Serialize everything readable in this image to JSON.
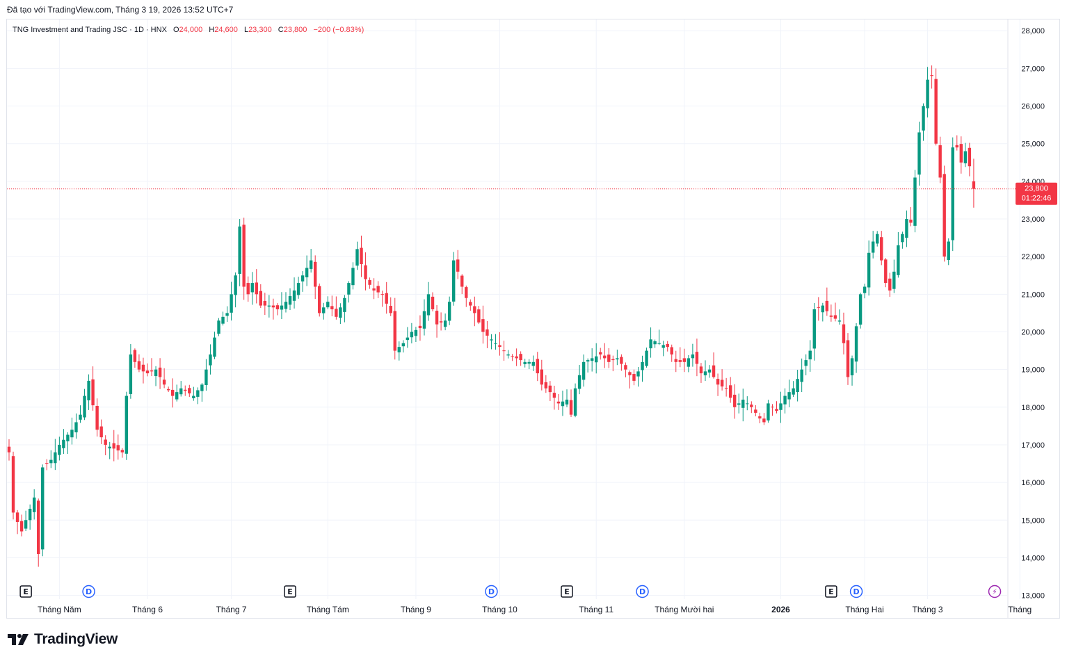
{
  "header": {
    "created_text": "Đã tạo với TradingView.com, Tháng 3 19, 2026 13:52 UTC+7"
  },
  "legend": {
    "symbol": "TNG Investment and Trading JSC · 1D · HNX",
    "o_label": "O",
    "o_value": "24,000",
    "h_label": "H",
    "h_value": "24,600",
    "l_label": "L",
    "l_value": "23,300",
    "c_label": "C",
    "c_value": "23,800",
    "change": "−200 (−0.83%)"
  },
  "price_tag": {
    "price": "23,800",
    "countdown": "01:22:46"
  },
  "brand": {
    "name": "TradingView"
  },
  "colors": {
    "up": "#089981",
    "down": "#f23645",
    "grid": "#f0f3fa",
    "axis_text": "#131722",
    "dividend": "#2962ff",
    "earnings": "#131722",
    "split": "#9c27b0"
  },
  "chart_data": {
    "type": "candlestick",
    "y_range": [
      12900,
      28300
    ],
    "y_ticks": [
      {
        "value": 28000,
        "label": "28,000"
      },
      {
        "value": 27000,
        "label": "27,000"
      },
      {
        "value": 26000,
        "label": "26,000"
      },
      {
        "value": 25000,
        "label": "25,000"
      },
      {
        "value": 24000,
        "label": "24,000"
      },
      {
        "value": 23000,
        "label": "23,000"
      },
      {
        "value": 22000,
        "label": "22,000"
      },
      {
        "value": 21000,
        "label": "21,000"
      },
      {
        "value": 20000,
        "label": "20,000"
      },
      {
        "value": 19000,
        "label": "19,000"
      },
      {
        "value": 18000,
        "label": "18,000"
      },
      {
        "value": 17000,
        "label": "17,000"
      },
      {
        "value": 16000,
        "label": "16,000"
      },
      {
        "value": 15000,
        "label": "15,000"
      },
      {
        "value": 14000,
        "label": "14,000"
      },
      {
        "value": 13000,
        "label": "13,000"
      }
    ],
    "x_ticks": [
      {
        "index": 12,
        "label": "Tháng Năm",
        "bold": false
      },
      {
        "index": 33,
        "label": "Tháng 6",
        "bold": false
      },
      {
        "index": 53,
        "label": "Tháng 7",
        "bold": false
      },
      {
        "index": 76,
        "label": "Tháng Tám",
        "bold": false
      },
      {
        "index": 97,
        "label": "Tháng 9",
        "bold": false
      },
      {
        "index": 117,
        "label": "Tháng 10",
        "bold": false
      },
      {
        "index": 140,
        "label": "Tháng 11",
        "bold": false
      },
      {
        "index": 161,
        "label": "Tháng Mười hai",
        "bold": false
      },
      {
        "index": 184,
        "label": "2026",
        "bold": true
      },
      {
        "index": 204,
        "label": "Tháng Hai",
        "bold": false
      },
      {
        "index": 219,
        "label": "Tháng 3",
        "bold": false
      },
      {
        "index": 241,
        "label": "Tháng",
        "bold": false
      }
    ],
    "markers": [
      {
        "index": 4,
        "type": "E"
      },
      {
        "index": 19,
        "type": "D"
      },
      {
        "index": 67,
        "type": "E"
      },
      {
        "index": 115,
        "type": "D"
      },
      {
        "index": 133,
        "type": "E"
      },
      {
        "index": 151,
        "type": "D"
      },
      {
        "index": 196,
        "type": "E"
      },
      {
        "index": 202,
        "type": "D"
      },
      {
        "index": 235,
        "type": "⚡"
      }
    ],
    "last_price": 23800,
    "keypoints": [
      [
        0,
        16800
      ],
      [
        1,
        15200
      ],
      [
        3,
        14700
      ],
      [
        6,
        15600
      ],
      [
        7,
        14100
      ],
      [
        8,
        16400
      ],
      [
        10,
        16600
      ],
      [
        12,
        17000
      ],
      [
        15,
        17400
      ],
      [
        17,
        17800
      ],
      [
        18,
        18300
      ],
      [
        19,
        18700
      ],
      [
        21,
        17400
      ],
      [
        23,
        17000
      ],
      [
        25,
        16900
      ],
      [
        27,
        16800
      ],
      [
        28,
        18300
      ],
      [
        29,
        19400
      ],
      [
        31,
        19000
      ],
      [
        33,
        18900
      ],
      [
        35,
        19000
      ],
      [
        37,
        18600
      ],
      [
        39,
        18300
      ],
      [
        41,
        18500
      ],
      [
        44,
        18300
      ],
      [
        46,
        18600
      ],
      [
        48,
        19400
      ],
      [
        50,
        20300
      ],
      [
        52,
        20500
      ],
      [
        53,
        21000
      ],
      [
        54,
        21500
      ],
      [
        55,
        22800
      ],
      [
        56,
        21200
      ],
      [
        57,
        21000
      ],
      [
        58,
        21300
      ],
      [
        60,
        20700
      ],
      [
        62,
        20700
      ],
      [
        64,
        20600
      ],
      [
        66,
        20800
      ],
      [
        68,
        21100
      ],
      [
        70,
        21500
      ],
      [
        72,
        21900
      ],
      [
        73,
        21200
      ],
      [
        74,
        20500
      ],
      [
        76,
        20800
      ],
      [
        78,
        20400
      ],
      [
        80,
        20900
      ],
      [
        82,
        21700
      ],
      [
        83,
        22200
      ],
      [
        84,
        21800
      ],
      [
        85,
        21400
      ],
      [
        87,
        21100
      ],
      [
        89,
        21000
      ],
      [
        91,
        20500
      ],
      [
        92,
        19500
      ],
      [
        94,
        19700
      ],
      [
        96,
        20000
      ],
      [
        98,
        20100
      ],
      [
        100,
        21000
      ],
      [
        101,
        20600
      ],
      [
        102,
        20200
      ],
      [
        104,
        20300
      ],
      [
        105,
        20800
      ],
      [
        106,
        21900
      ],
      [
        107,
        21600
      ],
      [
        108,
        21200
      ],
      [
        109,
        20900
      ],
      [
        111,
        20500
      ],
      [
        113,
        20000
      ],
      [
        115,
        19800
      ],
      [
        117,
        19600
      ],
      [
        119,
        19400
      ],
      [
        121,
        19300
      ],
      [
        123,
        19200
      ],
      [
        125,
        19200
      ],
      [
        127,
        18600
      ],
      [
        129,
        18400
      ],
      [
        131,
        18100
      ],
      [
        133,
        18200
      ],
      [
        134,
        17800
      ],
      [
        135,
        18500
      ],
      [
        137,
        19200
      ],
      [
        139,
        19300
      ],
      [
        141,
        19400
      ],
      [
        143,
        19200
      ],
      [
        145,
        19300
      ],
      [
        147,
        19000
      ],
      [
        149,
        18700
      ],
      [
        151,
        19200
      ],
      [
        153,
        19800
      ],
      [
        155,
        19700
      ],
      [
        157,
        19600
      ],
      [
        159,
        19200
      ],
      [
        161,
        19200
      ],
      [
        163,
        19400
      ],
      [
        165,
        18900
      ],
      [
        167,
        19000
      ],
      [
        169,
        18600
      ],
      [
        171,
        18500
      ],
      [
        173,
        18000
      ],
      [
        175,
        18200
      ],
      [
        177,
        18000
      ],
      [
        179,
        17700
      ],
      [
        180,
        17600
      ],
      [
        181,
        18100
      ],
      [
        183,
        17900
      ],
      [
        185,
        18300
      ],
      [
        187,
        18500
      ],
      [
        189,
        19000
      ],
      [
        191,
        19500
      ],
      [
        192,
        20600
      ],
      [
        194,
        20700
      ],
      [
        196,
        20400
      ],
      [
        198,
        20300
      ],
      [
        199,
        19700
      ],
      [
        200,
        18800
      ],
      [
        201,
        19300
      ],
      [
        203,
        21000
      ],
      [
        204,
        21200
      ],
      [
        205,
        22100
      ],
      [
        206,
        22400
      ],
      [
        207,
        22600
      ],
      [
        208,
        21900
      ],
      [
        209,
        21300
      ],
      [
        210,
        21100
      ],
      [
        211,
        21600
      ],
      [
        212,
        22300
      ],
      [
        213,
        22600
      ],
      [
        214,
        23000
      ],
      [
        215,
        22900
      ],
      [
        216,
        24100
      ],
      [
        217,
        25300
      ],
      [
        218,
        26000
      ],
      [
        219,
        26700
      ],
      [
        220,
        26800
      ],
      [
        221,
        25000
      ],
      [
        222,
        24100
      ],
      [
        223,
        22000
      ],
      [
        224,
        22400
      ],
      [
        225,
        24900
      ],
      [
        226,
        24900
      ],
      [
        227,
        24500
      ],
      [
        228,
        24800
      ],
      [
        229,
        24400
      ],
      [
        230,
        23800
      ]
    ]
  }
}
